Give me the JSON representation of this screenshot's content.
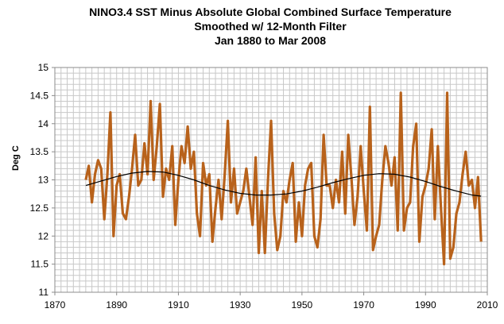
{
  "chart_data": {
    "type": "line",
    "title": "NINO3.4 SST Minus Absolute Global Combined Surface Temperature",
    "subtitle_1": "Smoothed w/ 12-Month Filter",
    "subtitle_2": "Jan 1880 to Mar 2008",
    "xlabel": "",
    "ylabel": "Deg C",
    "xlim": [
      1870,
      2010
    ],
    "ylim": [
      11,
      15
    ],
    "xticks": [
      1870,
      1890,
      1910,
      1930,
      1950,
      1970,
      1990,
      2010
    ],
    "yticks": [
      11,
      11.5,
      12,
      12.5,
      13,
      13.5,
      14,
      14.5,
      15
    ],
    "grid": true,
    "legend": "none",
    "series": [
      {
        "color": "#b8621b",
        "x": [
          1880,
          1881,
          1882,
          1883,
          1884,
          1885,
          1886,
          1887,
          1888,
          1889,
          1890,
          1891,
          1892,
          1893,
          1894,
          1895,
          1896,
          1897,
          1898,
          1899,
          1900,
          1901,
          1902,
          1903,
          1904,
          1905,
          1906,
          1907,
          1908,
          1909,
          1910,
          1911,
          1912,
          1913,
          1914,
          1915,
          1916,
          1917,
          1918,
          1919,
          1920,
          1921,
          1922,
          1923,
          1924,
          1925,
          1926,
          1927,
          1928,
          1929,
          1930,
          1931,
          1932,
          1933,
          1934,
          1935,
          1936,
          1937,
          1938,
          1939,
          1940,
          1941,
          1942,
          1943,
          1944,
          1945,
          1946,
          1947,
          1948,
          1949,
          1950,
          1951,
          1952,
          1953,
          1954,
          1955,
          1956,
          1957,
          1958,
          1959,
          1960,
          1961,
          1962,
          1963,
          1964,
          1965,
          1966,
          1967,
          1968,
          1969,
          1970,
          1971,
          1972,
          1973,
          1974,
          1975,
          1976,
          1977,
          1978,
          1979,
          1980,
          1981,
          1982,
          1983,
          1984,
          1985,
          1986,
          1987,
          1988,
          1989,
          1990,
          1991,
          1992,
          1993,
          1994,
          1995,
          1996,
          1997,
          1998,
          1999,
          2000,
          2001,
          2002,
          2003,
          2004,
          2005,
          2006,
          2007,
          2008
        ],
        "values": [
          13.0,
          13.25,
          12.6,
          13.1,
          13.35,
          13.2,
          12.3,
          13.1,
          14.2,
          12.0,
          12.9,
          13.1,
          12.4,
          12.3,
          12.7,
          13.2,
          13.8,
          12.9,
          13.0,
          13.65,
          13.1,
          14.4,
          13.0,
          13.6,
          14.35,
          12.7,
          13.2,
          13.0,
          13.6,
          12.2,
          13.0,
          13.6,
          13.3,
          13.95,
          13.2,
          13.5,
          12.4,
          12.0,
          13.3,
          12.9,
          13.1,
          11.9,
          12.5,
          13.0,
          12.3,
          13.1,
          14.05,
          12.6,
          13.2,
          12.4,
          12.6,
          12.8,
          13.2,
          12.7,
          12.2,
          13.4,
          11.7,
          12.8,
          11.7,
          13.0,
          14.05,
          12.4,
          11.75,
          12.0,
          12.8,
          12.6,
          13.0,
          13.3,
          11.9,
          12.6,
          12.0,
          12.9,
          13.2,
          13.3,
          12.0,
          11.8,
          12.3,
          13.8,
          12.9,
          12.9,
          12.5,
          13.0,
          12.6,
          13.5,
          12.4,
          13.8,
          13.05,
          12.2,
          12.7,
          13.6,
          12.8,
          12.1,
          14.3,
          11.75,
          12.0,
          12.2,
          13.0,
          13.6,
          13.3,
          12.9,
          13.4,
          12.1,
          14.55,
          12.1,
          12.5,
          12.6,
          13.6,
          14.0,
          11.9,
          12.7,
          12.9,
          13.2,
          13.9,
          12.3,
          13.6,
          12.5,
          11.5,
          14.55,
          11.6,
          11.8,
          12.4,
          12.6,
          13.1,
          13.5,
          12.9,
          13.0,
          12.5,
          13.05,
          11.9
        ]
      },
      {
        "color": "#000000",
        "x": [
          1880,
          1885,
          1890,
          1895,
          1900,
          1905,
          1910,
          1915,
          1920,
          1925,
          1930,
          1935,
          1940,
          1945,
          1950,
          1955,
          1960,
          1965,
          1970,
          1975,
          1980,
          1985,
          1990,
          1995,
          2000,
          2005,
          2008
        ],
        "values": [
          12.9,
          12.98,
          13.06,
          13.12,
          13.15,
          13.14,
          13.08,
          13.0,
          12.9,
          12.82,
          12.76,
          12.73,
          12.73,
          12.75,
          12.8,
          12.87,
          12.95,
          13.02,
          13.08,
          13.11,
          13.1,
          13.05,
          12.97,
          12.88,
          12.8,
          12.73,
          12.71
        ]
      }
    ]
  }
}
